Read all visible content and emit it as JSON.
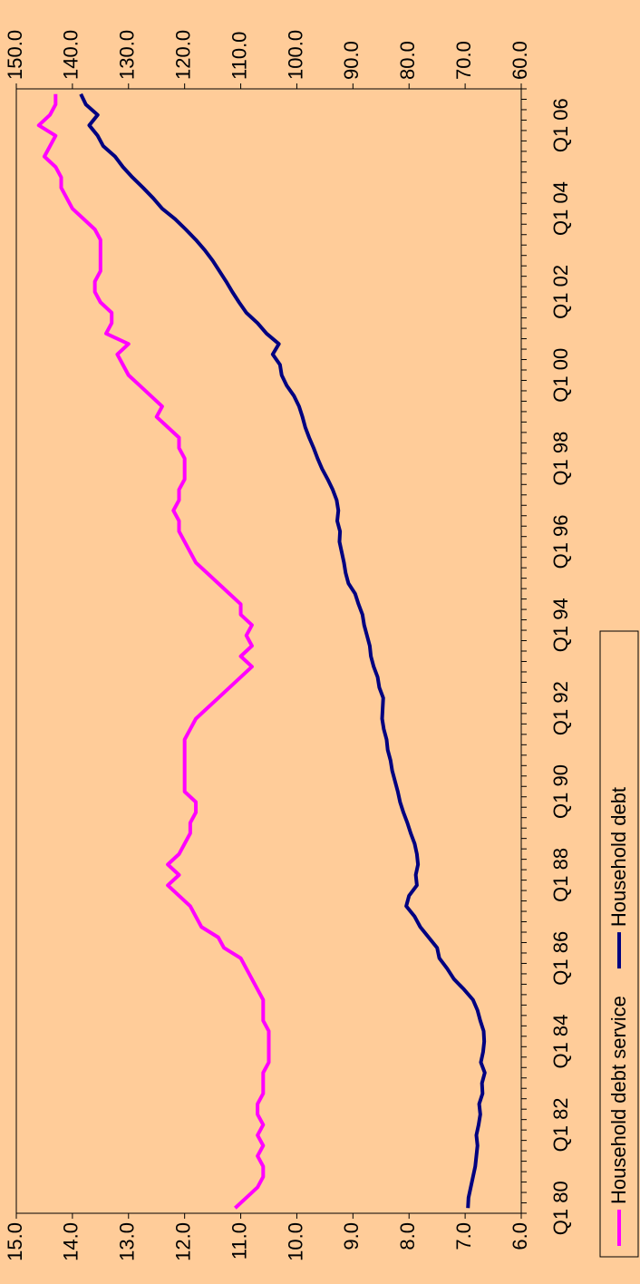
{
  "chart_data": {
    "type": "line",
    "categories": [
      "Q1 80",
      null,
      null,
      null,
      null,
      null,
      null,
      null,
      "Q1 82",
      null,
      null,
      null,
      null,
      null,
      null,
      null,
      "Q1 84",
      null,
      null,
      null,
      null,
      null,
      null,
      null,
      "Q1 86",
      null,
      null,
      null,
      null,
      null,
      null,
      null,
      "Q1 88",
      null,
      null,
      null,
      null,
      null,
      null,
      null,
      "Q1 90",
      null,
      null,
      null,
      null,
      null,
      null,
      null,
      "Q1 92",
      null,
      null,
      null,
      null,
      null,
      null,
      null,
      "Q1 94",
      null,
      null,
      null,
      null,
      null,
      null,
      null,
      "Q1 96",
      null,
      null,
      null,
      null,
      null,
      null,
      null,
      "Q1 98",
      null,
      null,
      null,
      null,
      null,
      null,
      null,
      "Q1 00",
      null,
      null,
      null,
      null,
      null,
      null,
      null,
      "Q1 02",
      null,
      null,
      null,
      null,
      null,
      null,
      null,
      "Q1 04",
      null,
      null,
      null,
      null,
      null,
      null,
      null,
      "Q1 06",
      null,
      null,
      null
    ],
    "series": [
      {
        "name": "Household debt service",
        "color": "#ff00ff",
        "values": [
          11.1,
          10.9,
          10.7,
          10.6,
          10.6,
          10.7,
          10.6,
          10.7,
          10.6,
          10.7,
          10.7,
          10.6,
          10.6,
          10.6,
          10.5,
          10.5,
          10.5,
          10.5,
          10.6,
          10.6,
          10.6,
          10.7,
          10.8,
          10.9,
          11.0,
          11.3,
          11.4,
          11.7,
          11.8,
          11.9,
          12.1,
          12.3,
          12.1,
          12.3,
          12.1,
          12.0,
          11.9,
          11.9,
          11.8,
          11.8,
          12.0,
          12.0,
          12.0,
          12.0,
          12.0,
          12.0,
          11.9,
          11.8,
          11.6,
          11.4,
          11.2,
          11.0,
          10.8,
          11.0,
          10.8,
          10.9,
          10.8,
          11.0,
          11.0,
          11.2,
          11.4,
          11.6,
          11.8,
          11.9,
          12.0,
          12.1,
          12.1,
          12.2,
          12.1,
          12.1,
          12.0,
          12.0,
          12.0,
          12.1,
          12.1,
          12.3,
          12.5,
          12.4,
          12.6,
          12.8,
          13.0,
          13.1,
          13.2,
          13.0,
          13.4,
          13.3,
          13.3,
          13.5,
          13.6,
          13.6,
          13.5,
          13.5,
          13.5,
          13.5,
          13.6,
          13.8,
          14.0,
          14.1,
          14.2,
          14.2,
          14.3,
          14.5,
          14.4,
          14.3,
          14.6,
          14.4,
          14.3,
          14.3
        ]
      },
      {
        "name": "Household debt",
        "color": "#000080",
        "axis": "y2",
        "values": [
          69.5,
          69.4,
          69.0,
          68.6,
          68.2,
          68.0,
          67.8,
          68.0,
          67.6,
          67.3,
          67.5,
          66.9,
          67.0,
          66.5,
          67.2,
          66.8,
          66.6,
          66.7,
          67.3,
          67.8,
          68.6,
          70.2,
          72.0,
          73.2,
          74.6,
          75.0,
          76.5,
          78.0,
          79.0,
          80.5,
          80.0,
          78.6,
          78.8,
          78.4,
          78.6,
          79.0,
          79.7,
          80.3,
          81.0,
          81.6,
          82.0,
          82.5,
          83.0,
          83.3,
          83.8,
          84.0,
          84.5,
          84.8,
          84.7,
          84.6,
          85.3,
          85.6,
          86.3,
          86.8,
          87.0,
          87.5,
          88.0,
          88.3,
          89.0,
          89.6,
          90.8,
          91.3,
          91.6,
          92.0,
          92.4,
          92.3,
          92.8,
          92.6,
          92.9,
          93.6,
          94.5,
          95.5,
          96.3,
          97.0,
          97.8,
          98.5,
          99.0,
          99.6,
          100.5,
          101.8,
          102.7,
          103.0,
          104.3,
          103.2,
          105.4,
          107.0,
          109.0,
          110.3,
          111.5,
          112.6,
          113.8,
          115.0,
          116.4,
          118.0,
          119.8,
          121.7,
          124.0,
          125.6,
          127.4,
          129.3,
          131.0,
          132.4,
          134.5,
          135.5,
          137.0,
          135.5,
          137.6,
          138.5
        ]
      }
    ],
    "ylim": [
      6,
      15
    ],
    "yticks": [
      {
        "value": 6,
        "label": "6.0"
      },
      {
        "value": 7,
        "label": "7.0"
      },
      {
        "value": 8,
        "label": "8.0"
      },
      {
        "value": 9,
        "label": "9.0"
      },
      {
        "value": 10,
        "label": "10.0"
      },
      {
        "value": 11,
        "label": "11.0"
      },
      {
        "value": 12,
        "label": "12.0"
      },
      {
        "value": 13,
        "label": "13.0"
      },
      {
        "value": 14,
        "label": "14.0"
      },
      {
        "value": 15,
        "label": "15.0"
      }
    ],
    "y2lim": [
      60,
      150
    ],
    "y2ticks": [
      {
        "value": 60,
        "label": "60.0"
      },
      {
        "value": 70,
        "label": "70.0"
      },
      {
        "value": 80,
        "label": "80.0"
      },
      {
        "value": 90,
        "label": "90.0"
      },
      {
        "value": 100,
        "label": "100.0"
      },
      {
        "value": 110,
        "label": "110.0"
      },
      {
        "value": 120,
        "label": "120.0"
      },
      {
        "value": 130,
        "label": "130.0"
      },
      {
        "value": 140,
        "label": "140.0"
      },
      {
        "value": 150,
        "label": "150.0"
      }
    ],
    "grid": false,
    "legend": "bottom"
  }
}
